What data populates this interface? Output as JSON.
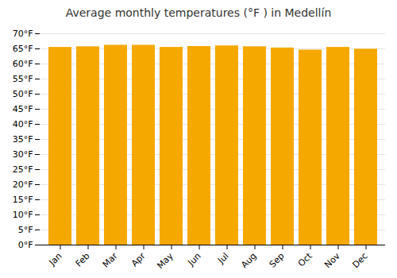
{
  "chart_data": {
    "type": "bar",
    "title": "Average monthly temperatures (°F ) in Medellín",
    "categories": [
      "Jan",
      "Feb",
      "Mar",
      "Apr",
      "May",
      "Jun",
      "Jul",
      "Aug",
      "Sep",
      "Oct",
      "Nov",
      "Dec"
    ],
    "values": [
      65.5,
      65.7,
      66.2,
      66.2,
      65.5,
      65.8,
      66.0,
      65.7,
      65.3,
      64.6,
      65.5,
      64.9
    ],
    "color": "#F5A800",
    "ylim": [
      0,
      70
    ],
    "yticks": [
      {
        "value": 0,
        "label": "0°F"
      },
      {
        "value": 5,
        "label": "5°F"
      },
      {
        "value": 10,
        "label": "10°F"
      },
      {
        "value": 15,
        "label": "15°F"
      },
      {
        "value": 20,
        "label": "20°F"
      },
      {
        "value": 25,
        "label": "25°F"
      },
      {
        "value": 30,
        "label": "30°F"
      },
      {
        "value": 35,
        "label": "35°F"
      },
      {
        "value": 40,
        "label": "40°F"
      },
      {
        "value": 45,
        "label": "45°F"
      },
      {
        "value": 50,
        "label": "50°F"
      },
      {
        "value": 55,
        "label": "55°F"
      },
      {
        "value": 60,
        "label": "60°F"
      },
      {
        "value": 65,
        "label": "65°F"
      },
      {
        "value": 70,
        "label": "70°F"
      }
    ],
    "grid": true
  }
}
